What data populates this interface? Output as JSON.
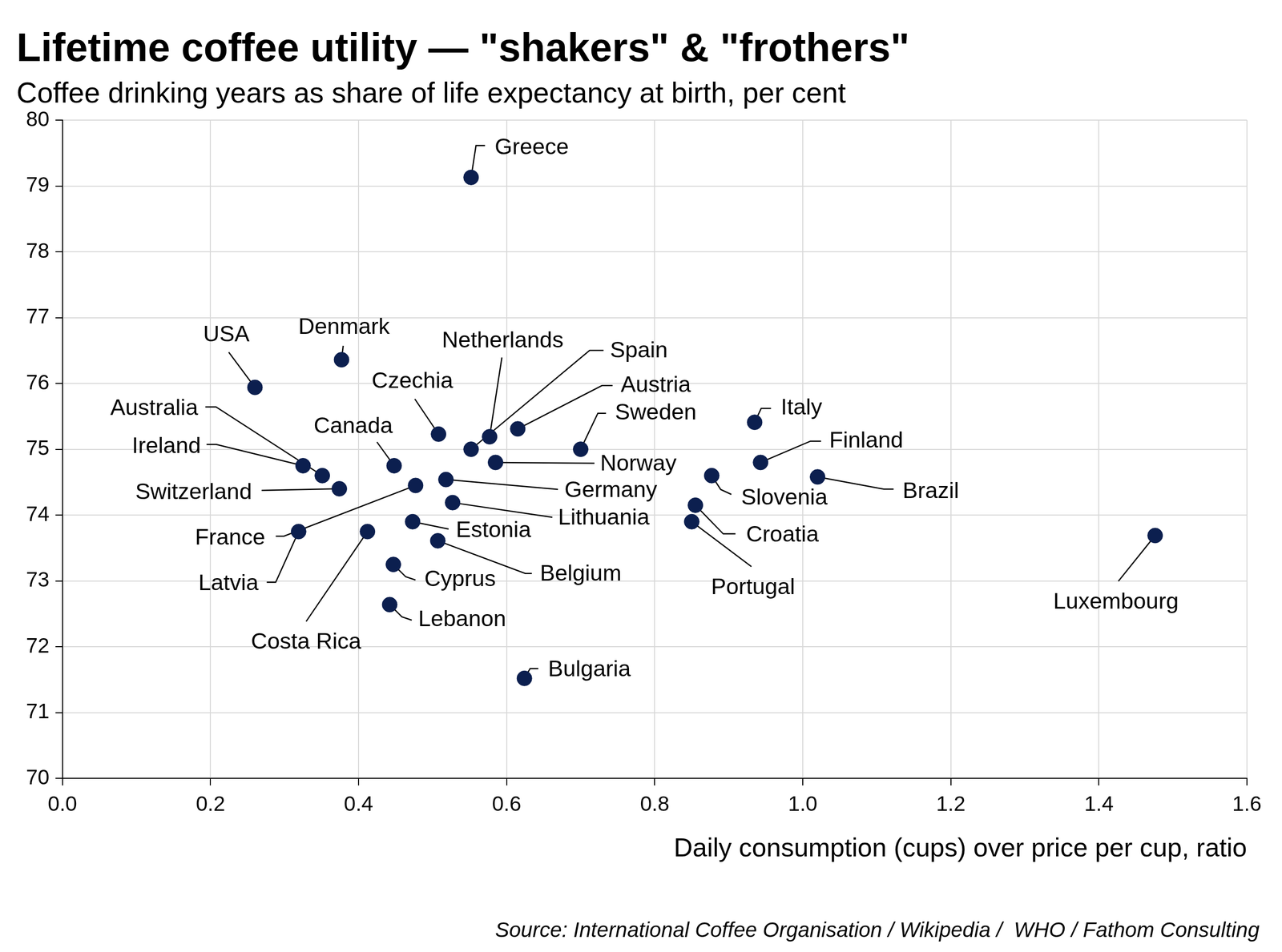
{
  "chart_data": {
    "type": "scatter",
    "title": "Lifetime coffee utility — \"shakers\" & \"frothers\"",
    "subtitle": "Coffee drinking years as share of life expectancy at birth, per cent",
    "x_label": "Daily consumption (cups) over price per cup, ratio",
    "source": "Source: International Coffee Organisation / Wikipedia /  WHO / Fathom Consulting",
    "point_labels": [
      "Greece",
      "USA",
      "Denmark",
      "Czechia",
      "Netherlands",
      "Spain",
      "Austria",
      "Sweden",
      "Norway",
      "Australia",
      "Ireland",
      "Switzerland",
      "Canada",
      "France",
      "Germany",
      "Lithuania",
      "Estonia",
      "Belgium",
      "Cyprus",
      "Lebanon",
      "Latvia",
      "Costa Rica",
      "Bulgaria",
      "Italy",
      "Finland",
      "Brazil",
      "Slovenia",
      "Croatia",
      "Portugal",
      "Luxembourg"
    ],
    "x": [
      0.552,
      0.26,
      0.377,
      0.508,
      0.577,
      0.552,
      0.615,
      0.7,
      0.585,
      0.351,
      0.325,
      0.374,
      0.448,
      0.477,
      0.518,
      0.527,
      0.473,
      0.507,
      0.447,
      0.442,
      0.319,
      0.412,
      0.624,
      0.935,
      0.943,
      1.02,
      0.877,
      0.855,
      0.85,
      1.476
    ],
    "values": [
      79.13,
      75.94,
      76.36,
      75.23,
      75.19,
      75.0,
      75.31,
      75.0,
      74.8,
      74.6,
      74.75,
      74.4,
      74.75,
      74.45,
      74.54,
      74.19,
      73.9,
      73.61,
      73.25,
      72.64,
      73.75,
      73.75,
      71.52,
      75.41,
      74.8,
      74.58,
      74.6,
      74.15,
      73.9,
      73.69
    ],
    "color": "#0c1f4f",
    "xlim": [
      0,
      1.6
    ],
    "ylim": [
      70,
      80
    ],
    "xticks": [
      {
        "value": 0,
        "label": "0.0"
      },
      0.2,
      0.4,
      0.6,
      0.8,
      {
        "value": 1,
        "label": "1.0"
      },
      1.2,
      1.4,
      1.6
    ],
    "yticks": [
      70,
      71,
      72,
      73,
      74,
      75,
      76,
      77,
      78,
      79,
      80
    ],
    "grid": true
  }
}
